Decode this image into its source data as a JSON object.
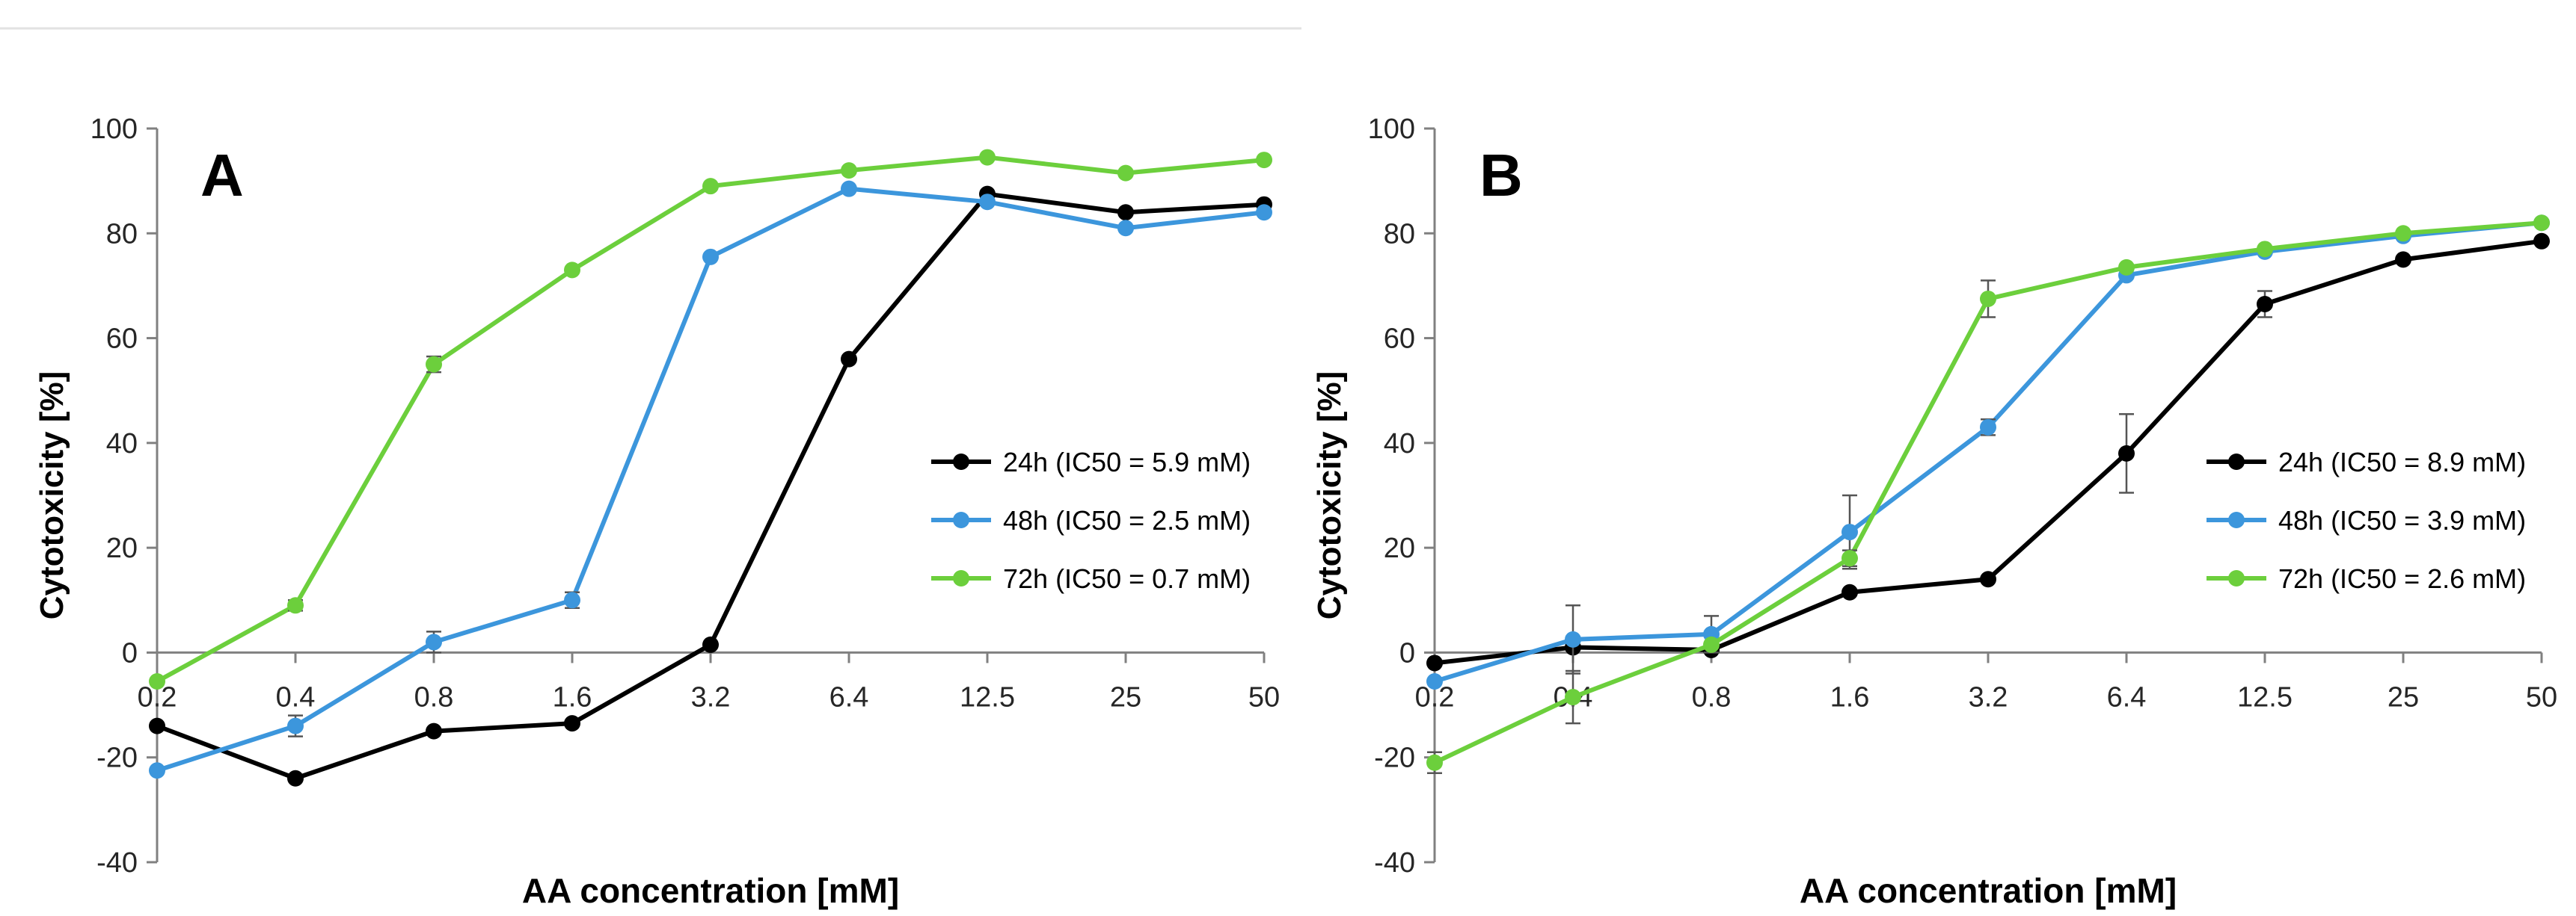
{
  "chart_data": [
    {
      "type": "line",
      "panel": "A",
      "xlabel": "AA concentration [mM]",
      "ylabel": "Cytotoxicity [%]",
      "categories": [
        "0.2",
        "0.4",
        "0.8",
        "1.6",
        "3.2",
        "6.4",
        "12.5",
        "25",
        "50"
      ],
      "ylim": [
        -40,
        100
      ],
      "yticks": [
        "100",
        "80",
        "60",
        "40",
        "20",
        "0",
        "-20",
        "-40"
      ],
      "legend_position": "right",
      "series": [
        {
          "name": "24h (IC50 = 5.9 mM)",
          "color": "#000000",
          "values": [
            -14,
            -24,
            -15,
            -13.5,
            1.5,
            56,
            87.5,
            84,
            85.5
          ],
          "errors": [
            0,
            0,
            0,
            0,
            0,
            0,
            0,
            0,
            0
          ]
        },
        {
          "name": "48h (IC50 = 2.5 mM)",
          "color": "#3c96dc",
          "values": [
            -22.5,
            -14,
            2,
            10,
            75.5,
            88.5,
            86,
            81,
            84
          ],
          "errors": [
            0,
            2,
            2,
            1.5,
            0,
            0,
            0,
            0,
            0
          ]
        },
        {
          "name": "72h (IC50 = 0.7 mM)",
          "color": "#6ccf3c",
          "values": [
            -5.5,
            9,
            55,
            73,
            89,
            92,
            94.5,
            91.5,
            94
          ],
          "errors": [
            0,
            1,
            1.5,
            0,
            0,
            0,
            0,
            0,
            0
          ]
        }
      ]
    },
    {
      "type": "line",
      "panel": "B",
      "xlabel": "AA concentration [mM]",
      "ylabel": "Cytotoxicity [%]",
      "categories": [
        "0.2",
        "0.4",
        "0.8",
        "1.6",
        "3.2",
        "6.4",
        "12.5",
        "25",
        "50"
      ],
      "ylim": [
        -40,
        100
      ],
      "yticks": [
        "100",
        "80",
        "60",
        "40",
        "20",
        "0",
        "-20",
        "-40"
      ],
      "legend_position": "right",
      "series": [
        {
          "name": "24h (IC50 = 8.9 mM)",
          "color": "#000000",
          "values": [
            -2,
            1,
            0.5,
            11.5,
            14,
            38,
            66.5,
            75,
            78.5
          ],
          "errors": [
            0,
            0,
            0,
            0,
            0,
            7.5,
            2.5,
            0,
            0
          ]
        },
        {
          "name": "48h (IC50 = 3.9 mM)",
          "color": "#3c96dc",
          "values": [
            -5.5,
            2.5,
            3.5,
            23,
            43,
            72,
            76.5,
            79.5,
            82
          ],
          "errors": [
            0,
            6.5,
            3.5,
            7,
            1.5,
            0,
            0,
            0,
            0
          ]
        },
        {
          "name": "72h (IC50 = 2.6 mM)",
          "color": "#6ccf3c",
          "values": [
            -21,
            -8.5,
            1.5,
            18,
            67.5,
            73.5,
            77,
            80,
            82
          ],
          "errors": [
            2,
            5,
            0,
            1.5,
            3.5,
            0,
            0,
            0,
            0
          ]
        }
      ]
    }
  ]
}
